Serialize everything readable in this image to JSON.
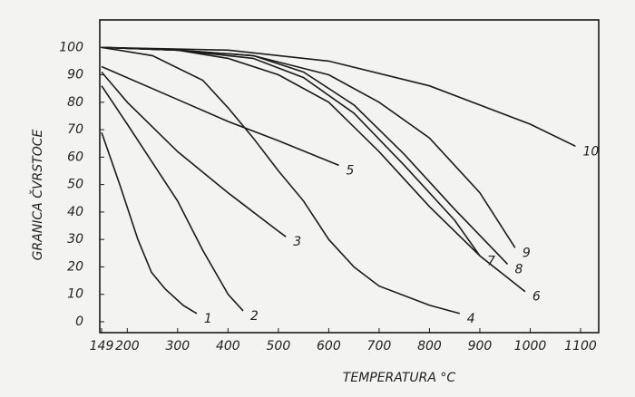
{
  "chart_data": {
    "type": "line",
    "xlabel": "TEMPERATURA °C",
    "ylabel": "GRANICA ČVRSTOCE",
    "xlim": [
      149,
      1100
    ],
    "ylim": [
      0,
      110
    ],
    "xticks": [
      149,
      200,
      300,
      400,
      500,
      600,
      700,
      800,
      900,
      1000,
      1100
    ],
    "yticks": [
      0,
      10,
      20,
      30,
      40,
      50,
      60,
      70,
      80,
      90,
      100
    ],
    "color": "#1a1a1a",
    "series": [
      {
        "name": "1",
        "x": [
          149,
          185,
          221,
          248,
          275,
          311,
          338
        ],
        "values": [
          69,
          50,
          30,
          18,
          12,
          6,
          3
        ]
      },
      {
        "name": "2",
        "x": [
          149,
          200,
          250,
          300,
          350,
          400,
          430
        ],
        "values": [
          86,
          72,
          58,
          44,
          26,
          10,
          4
        ]
      },
      {
        "name": "3",
        "x": [
          149,
          200,
          300,
          400,
          500,
          515
        ],
        "values": [
          91,
          80,
          62,
          47,
          33,
          31
        ]
      },
      {
        "name": "4",
        "x": [
          149,
          250,
          350,
          400,
          450,
          500,
          550,
          600,
          650,
          700,
          800,
          860
        ],
        "values": [
          100,
          97,
          88,
          78,
          67,
          55,
          44,
          30,
          20,
          13,
          6,
          3
        ]
      },
      {
        "name": "5",
        "x": [
          149,
          300,
          400,
          500,
          620
        ],
        "values": [
          93,
          81,
          73,
          66,
          57
        ]
      },
      {
        "name": "6",
        "x": [
          149,
          300,
          400,
          500,
          600,
          700,
          800,
          900,
          990
        ],
        "values": [
          100,
          99,
          96,
          90,
          80,
          62,
          42,
          24,
          11
        ]
      },
      {
        "name": "7",
        "x": [
          149,
          300,
          450,
          550,
          650,
          750,
          850,
          900
        ],
        "values": [
          100,
          99,
          96,
          89,
          76,
          57,
          37,
          24
        ]
      },
      {
        "name": "8",
        "x": [
          149,
          300,
          450,
          550,
          650,
          750,
          850,
          955
        ],
        "values": [
          100,
          99,
          97,
          91,
          79,
          61,
          41,
          21
        ]
      },
      {
        "name": "9",
        "x": [
          149,
          300,
          450,
          600,
          700,
          800,
          900,
          970
        ],
        "values": [
          100,
          99,
          97,
          90,
          80,
          67,
          47,
          27
        ]
      },
      {
        "name": "10",
        "x": [
          149,
          400,
          600,
          800,
          1000,
          1090
        ],
        "values": [
          100,
          99,
          95,
          86,
          72,
          64
        ]
      }
    ]
  }
}
